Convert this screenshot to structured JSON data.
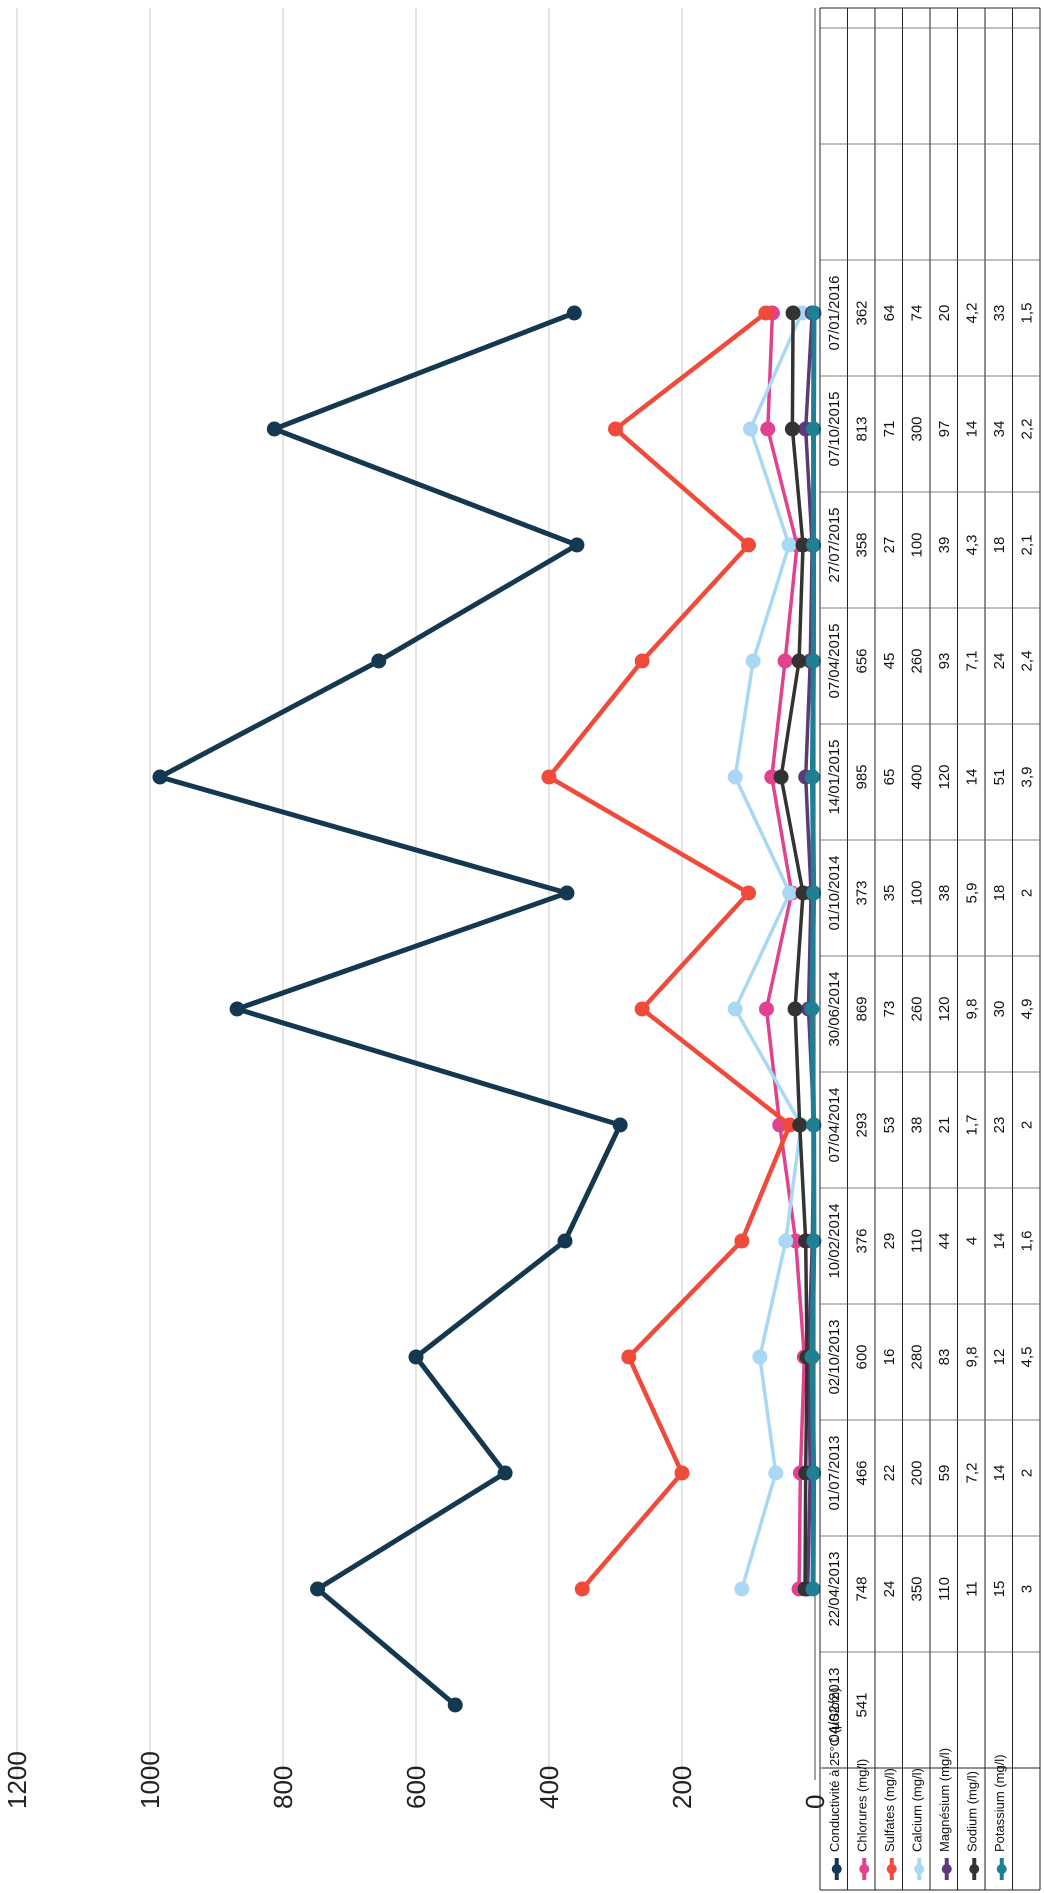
{
  "chart_data": {
    "type": "line",
    "orientation": "rotated-90-clockwise",
    "y_ticks": [
      "0",
      "200",
      "400",
      "600",
      "800",
      "1000",
      "1200"
    ],
    "ylim": [
      0,
      1200
    ],
    "grid": true,
    "categories": [
      "04/02/2013",
      "22/04/2013",
      "01/07/2013",
      "02/10/2013",
      "10/02/2014",
      "07/04/2014",
      "30/06/2014",
      "01/10/2014",
      "14/01/2015",
      "07/04/2015",
      "27/07/2015",
      "07/10/2015",
      "07/01/2016"
    ],
    "series": [
      {
        "name": "Conductivité à 25°C (µS/cm)",
        "color": "#14384f",
        "values": [
          541,
          748,
          466,
          600,
          376,
          293,
          869,
          373,
          985,
          656,
          358,
          813,
          362
        ],
        "labels": [
          "541",
          "748",
          "466",
          "600",
          "376",
          "293",
          "869",
          "373",
          "985",
          "656",
          "358",
          "813",
          "362"
        ]
      },
      {
        "name": "Chlorures (mg/l)",
        "color": "#e0428f",
        "values": [
          null,
          24,
          22,
          16,
          29,
          53,
          73,
          35,
          65,
          45,
          27,
          71,
          64
        ],
        "labels": [
          "",
          "24",
          "22",
          "16",
          "29",
          "53",
          "73",
          "35",
          "65",
          "45",
          "27",
          "71",
          "64"
        ]
      },
      {
        "name": "Sulfates (mg/l)",
        "color": "#f04a3a",
        "values": [
          null,
          350,
          200,
          280,
          110,
          38,
          260,
          100,
          400,
          260,
          100,
          300,
          74
        ],
        "labels": [
          "",
          "350",
          "200",
          "280",
          "110",
          "38",
          "260",
          "100",
          "400",
          "260",
          "100",
          "300",
          "74"
        ]
      },
      {
        "name": "Calcium (mg/l)",
        "color": "#a8d8f4",
        "values": [
          null,
          110,
          59,
          83,
          44,
          21,
          120,
          38,
          120,
          93,
          39,
          97,
          20
        ],
        "labels": [
          "",
          "110",
          "59",
          "83",
          "44",
          "21",
          "120",
          "38",
          "120",
          "93",
          "39",
          "97",
          "20"
        ]
      },
      {
        "name": "Magnésium (mg/l)",
        "color": "#5a3a78",
        "values": [
          null,
          11,
          7.2,
          9.8,
          4,
          1.7,
          9.8,
          5.9,
          14,
          7.1,
          4.3,
          14,
          4.2
        ],
        "labels": [
          "",
          "11",
          "7,2",
          "9,8",
          "4",
          "1,7",
          "9,8",
          "5,9",
          "14",
          "7,1",
          "4,3",
          "14",
          "4,2"
        ]
      },
      {
        "name": "Sodium (mg/l)",
        "color": "#333333",
        "values": [
          null,
          15,
          14,
          12,
          14,
          23,
          30,
          18,
          51,
          24,
          18,
          34,
          33
        ],
        "labels": [
          "",
          "15",
          "14",
          "12",
          "14",
          "23",
          "30",
          "18",
          "51",
          "24",
          "18",
          "34",
          "33"
        ]
      },
      {
        "name": "Potassium (mg/l)",
        "color": "#1f7f93",
        "values": [
          null,
          3,
          2,
          4.5,
          1.6,
          2,
          4.9,
          2,
          3.9,
          2.4,
          2.1,
          2.2,
          1.5
        ],
        "labels": [
          "",
          "3",
          "2",
          "4,5",
          "1,6",
          "2",
          "4,9",
          "2",
          "3,9",
          "2,4",
          "2,1",
          "2,2",
          "1,5"
        ]
      }
    ]
  }
}
